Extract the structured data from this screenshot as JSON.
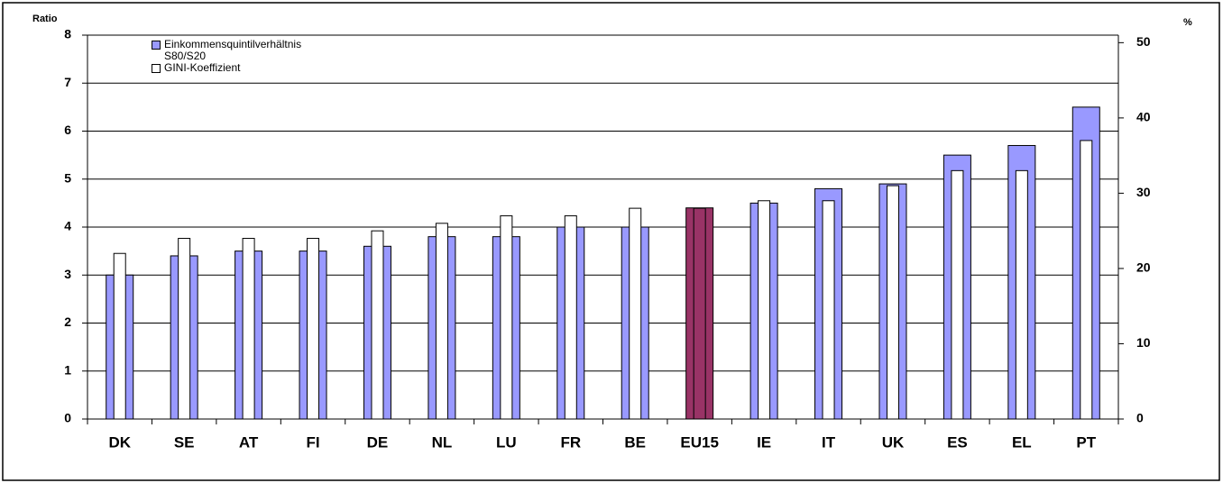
{
  "chart_data": {
    "type": "bar",
    "y_label": "Ratio",
    "y2_label": "%",
    "categories": [
      "DK",
      "SE",
      "AT",
      "FI",
      "DE",
      "NL",
      "LU",
      "FR",
      "BE",
      "EU15",
      "IE",
      "IT",
      "UK",
      "ES",
      "EL",
      "PT"
    ],
    "series": [
      {
        "name": "Einkommensquintilverhältnis S80/S20",
        "color": "#9999ff",
        "values": [
          3,
          3.4,
          3.5,
          3.5,
          3.6,
          3.8,
          3.8,
          4,
          4,
          4.4,
          4.5,
          4.8,
          4.9,
          5.5,
          5.7,
          6.5
        ]
      },
      {
        "name": "GINI-Koeffizient",
        "color": "#ffffff",
        "axis": "y2",
        "values": [
          22,
          24,
          24,
          24,
          25,
          26,
          27,
          27,
          28,
          28,
          29,
          29,
          31,
          33,
          33,
          37
        ]
      }
    ],
    "highlight": {
      "category": "EU15",
      "color": "#993366"
    },
    "ylim": [
      0,
      8
    ],
    "yticks": [
      0,
      1,
      2,
      3,
      4,
      5,
      6,
      7,
      8
    ],
    "y2lim": [
      0,
      51
    ],
    "y2ticks": [
      0,
      10,
      20,
      30,
      40,
      50
    ],
    "grid": true
  }
}
